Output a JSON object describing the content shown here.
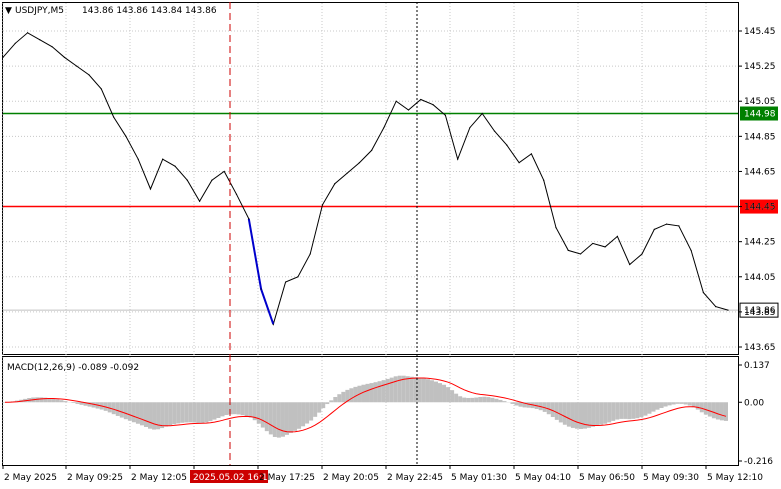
{
  "header": {
    "symbol": "USDJPY,M5",
    "ohlc": "143.86 143.86 143.84 143.86"
  },
  "indicator": {
    "label": "MACD(12,26,9) -0.089 -0.092",
    "scale_labels": [
      "0.137",
      "0.00",
      "-0.216"
    ]
  },
  "price_axis": {
    "labels": [
      "145.45",
      "145.25",
      "145.05",
      "144.85",
      "144.65",
      "144.45",
      "144.25",
      "144.05",
      "143.85",
      "143.65"
    ]
  },
  "levels": [
    {
      "name": "resistance",
      "price": 144.98,
      "label": "144.98",
      "color": "#008000"
    },
    {
      "name": "support",
      "price": 144.45,
      "label": "144.45",
      "color": "#ff0000"
    }
  ],
  "current_price": {
    "price": 143.86,
    "label": "143.86"
  },
  "time_axis": {
    "labels": [
      "2 May 2025",
      "2 May 09:25",
      "2 May 12:05",
      "2025.05.02 16:10",
      "2 May 17:25",
      "2 May 20:05",
      "2 May 22:45",
      "5 May 01:30",
      "5 May 04:10",
      "5 May 06:50",
      "5 May 09:30",
      "5 May 12:10"
    ],
    "highlight_index": 3
  },
  "colors": {
    "price_line": "#000000",
    "highlight_segment": "#0000cc",
    "macd_hist": "#c0c0c0",
    "macd_signal": "#ff0000",
    "crosshair": "#cc0000",
    "grid": "#c8c8c8"
  },
  "chart_data": {
    "type": "line",
    "series": [
      {
        "values": [
          145.3,
          145.38,
          145.44,
          145.4,
          145.36,
          145.3,
          145.25,
          145.2,
          145.12,
          144.96,
          144.85,
          144.72,
          144.55,
          144.72,
          144.68,
          144.6,
          144.48,
          144.6,
          144.65,
          144.52,
          144.38,
          143.98,
          143.78,
          144.02,
          144.05,
          144.18,
          144.46,
          144.58,
          144.64,
          144.7,
          144.77,
          144.9,
          145.05,
          145.0,
          145.06,
          145.03,
          144.97,
          144.72,
          144.9,
          144.98,
          144.88,
          144.8,
          144.7,
          144.75,
          144.6,
          144.33,
          144.2,
          144.18,
          144.24,
          144.22,
          144.28,
          144.12,
          144.18,
          144.32,
          144.35,
          144.34,
          144.2,
          143.96,
          143.88,
          143.86
        ]
      }
    ]
  }
}
